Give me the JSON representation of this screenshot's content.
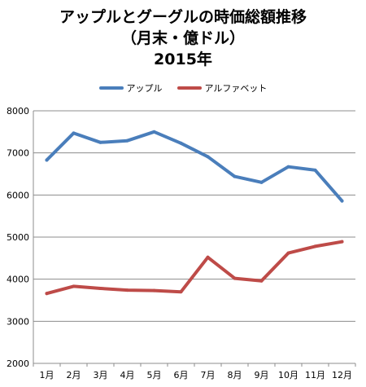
{
  "chart_data": {
    "type": "line",
    "title": [
      "アップルとグーグルの時価総額推移",
      "（月末・億ドル）",
      "2015年"
    ],
    "categories": [
      "1月",
      "2月",
      "3月",
      "4月",
      "5月",
      "6月",
      "7月",
      "8月",
      "9月",
      "10月",
      "11月",
      "12月"
    ],
    "series": [
      {
        "name": "アップル",
        "color": "#4a7ebb",
        "values": [
          6830,
          7470,
          7250,
          7290,
          7500,
          7230,
          6910,
          6440,
          6300,
          6670,
          6590,
          5860
        ]
      },
      {
        "name": "アルファベット",
        "color": "#be4b48",
        "values": [
          3660,
          3830,
          3780,
          3740,
          3730,
          3700,
          4520,
          4020,
          3960,
          4620,
          4780,
          4890
        ]
      }
    ],
    "ylim": [
      2000,
      8000
    ],
    "yticks": [
      "2000",
      "3000",
      "4000",
      "5000",
      "6000",
      "7000",
      "8000"
    ],
    "grid": true,
    "legend_position": "top"
  }
}
